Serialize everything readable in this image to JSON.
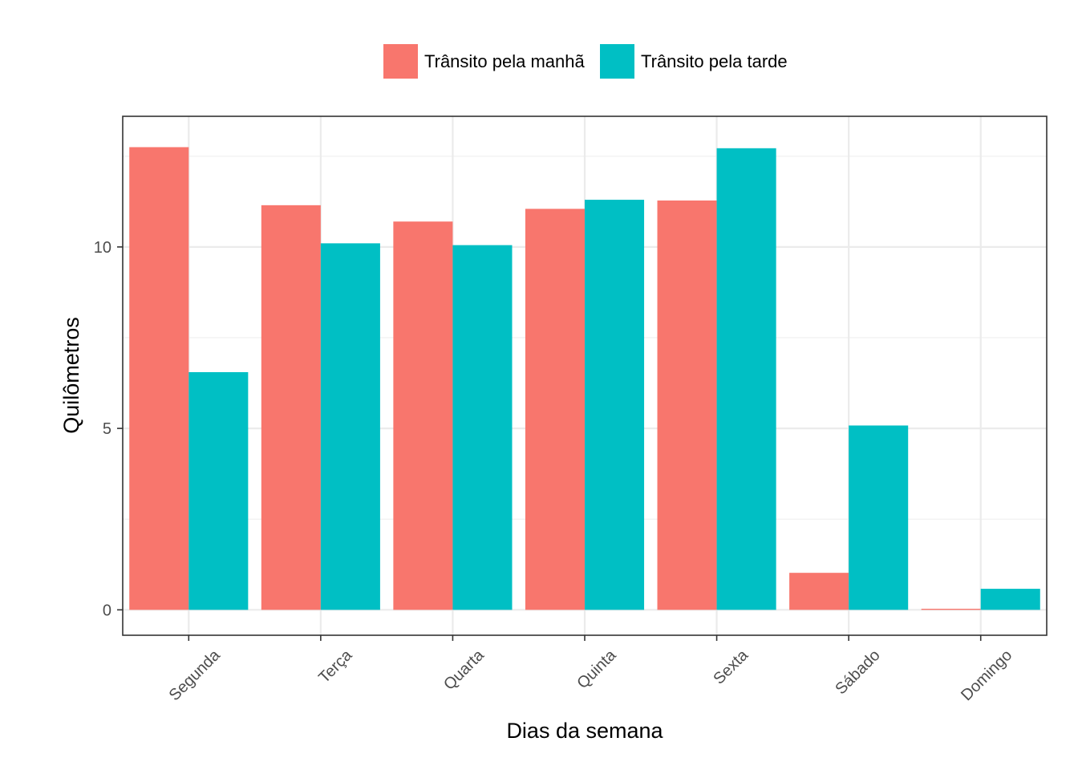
{
  "chart_data": {
    "type": "bar",
    "title": "",
    "xlabel": "Dias da semana",
    "ylabel": "Quilômetros",
    "categories": [
      "Segunda",
      "Terça",
      "Quarta",
      "Quinta",
      "Sexta",
      "Sábado",
      "Domingo"
    ],
    "series": [
      {
        "name": "Trânsito pela manhã",
        "color": "#F8766D",
        "values": [
          12.75,
          11.15,
          10.7,
          11.05,
          11.28,
          1.02,
          0.03
        ]
      },
      {
        "name": "Trânsito pela tarde",
        "color": "#00BFC4",
        "values": [
          6.55,
          10.1,
          10.05,
          11.3,
          12.72,
          5.08,
          0.58
        ]
      }
    ],
    "yticks": [
      0,
      5,
      10
    ],
    "ylim": [
      -0.7,
      13.6
    ],
    "grid": true,
    "legend_position": "top"
  }
}
